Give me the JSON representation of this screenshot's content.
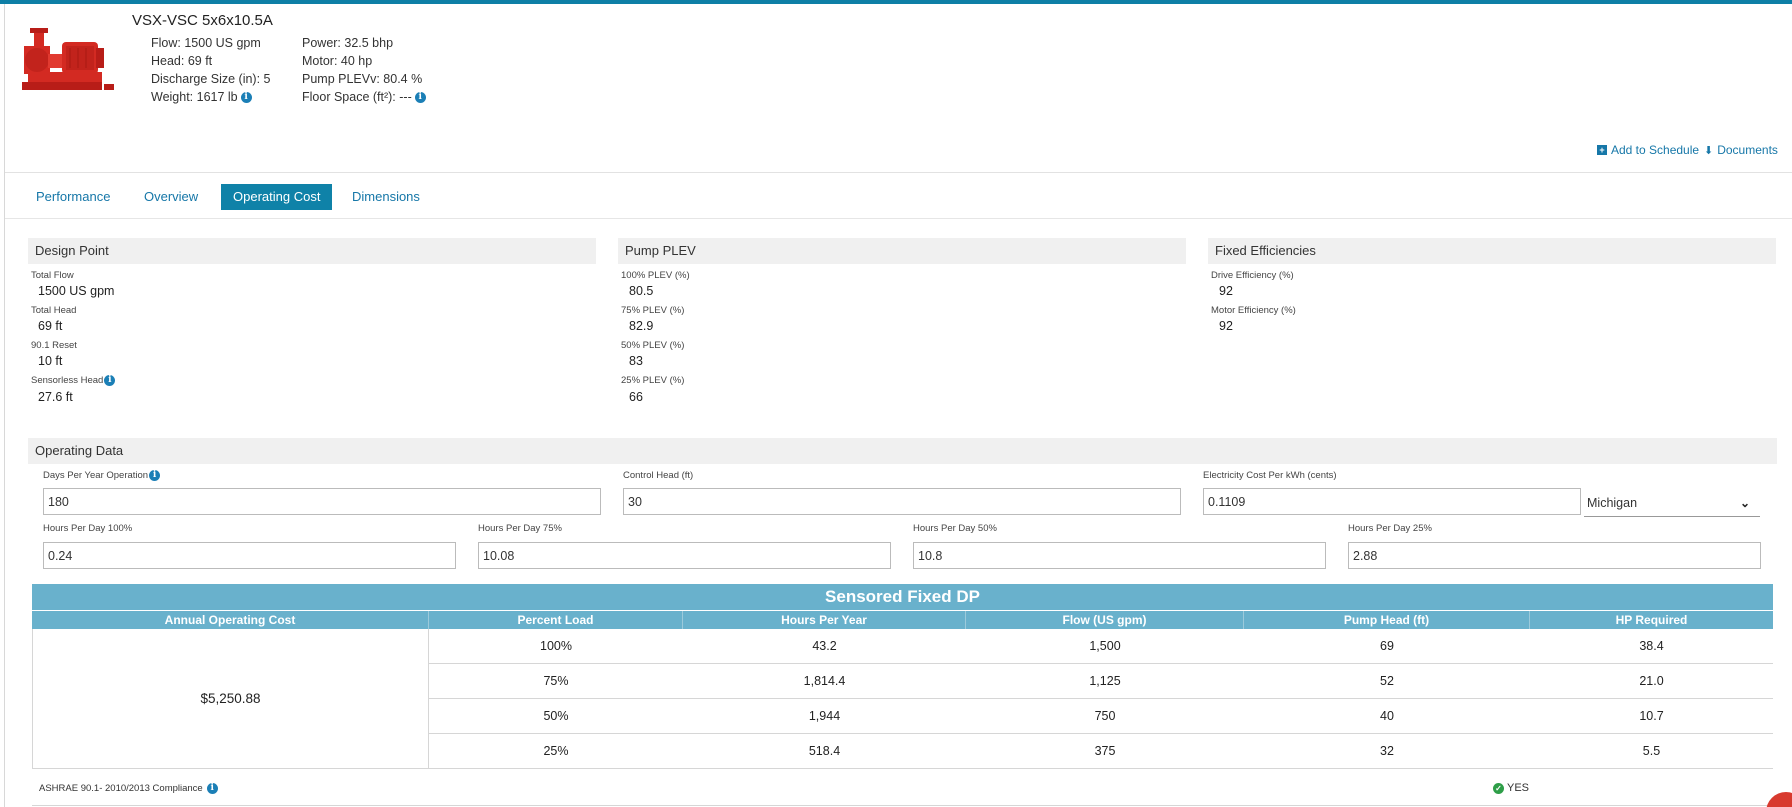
{
  "product": {
    "title": "VSX-VSC 5x6x10.5A",
    "specs_left": [
      "Flow: 1500 US gpm",
      "Head: 69 ft",
      "Discharge Size (in): 5",
      "Weight: 1617 lb"
    ],
    "specs_right": [
      "Power: 32.5 bhp",
      "Motor: 40 hp",
      "Pump PLEVv: 80.4 %",
      "Floor Space (ft²): ---"
    ]
  },
  "header_links": {
    "add_to_schedule": "Add to Schedule",
    "documents": "Documents"
  },
  "tabs": [
    "Performance",
    "Overview",
    "Operating Cost",
    "Dimensions"
  ],
  "active_tab": "Operating Cost",
  "design_point": {
    "title": "Design Point",
    "fields": [
      {
        "label": "Total Flow",
        "value": "1500 US gpm"
      },
      {
        "label": "Total Head",
        "value": "69 ft"
      },
      {
        "label": "90.1 Reset",
        "value": "10 ft"
      },
      {
        "label": "Sensorless Head",
        "value": "27.6 ft"
      }
    ]
  },
  "pump_plev": {
    "title": "Pump PLEV",
    "fields": [
      {
        "label": "100% PLEV (%)",
        "value": "80.5"
      },
      {
        "label": "75% PLEV (%)",
        "value": "82.9"
      },
      {
        "label": "50% PLEV (%)",
        "value": "83"
      },
      {
        "label": "25% PLEV (%)",
        "value": "66"
      }
    ]
  },
  "fixed_efficiencies": {
    "title": "Fixed Efficiencies",
    "fields": [
      {
        "label": "Drive Efficiency (%)",
        "value": "92"
      },
      {
        "label": "Motor Efficiency (%)",
        "value": "92"
      }
    ]
  },
  "operating_data": {
    "title": "Operating Data",
    "days_per_year": {
      "label": "Days Per Year Operation",
      "value": "180"
    },
    "control_head": {
      "label": "Control Head (ft)",
      "value": "30"
    },
    "electricity_cost": {
      "label": "Electricity Cost Per kWh (cents)",
      "value": "0.1109"
    },
    "state": "Michigan",
    "hours": [
      {
        "label": "Hours Per Day 100%",
        "value": "0.24"
      },
      {
        "label": "Hours Per Day 75%",
        "value": "10.08"
      },
      {
        "label": "Hours Per Day 50%",
        "value": "10.8"
      },
      {
        "label": "Hours Per Day 25%",
        "value": "2.88"
      }
    ]
  },
  "cost_table": {
    "title": "Sensored Fixed DP",
    "headers": [
      "Annual Operating Cost",
      "Percent Load",
      "Hours Per Year",
      "Flow (US gpm)",
      "Pump Head (ft)",
      "HP Required"
    ],
    "annual_cost": "$5,250.88",
    "rows": [
      [
        "100%",
        "43.2",
        "1,500",
        "69",
        "38.4"
      ],
      [
        "75%",
        "1,814.4",
        "1,125",
        "52",
        "21.0"
      ],
      [
        "50%",
        "1,944",
        "750",
        "40",
        "10.7"
      ],
      [
        "25%",
        "518.4",
        "375",
        "32",
        "5.5"
      ]
    ]
  },
  "compliance": {
    "label": "ASHRAE 90.1- 2010/2013 Compliance",
    "value": "YES"
  },
  "colors": {
    "accent": "#0e7fa6",
    "table_header": "#69b1cc",
    "link": "#1677a8",
    "product": "#d32a22"
  }
}
